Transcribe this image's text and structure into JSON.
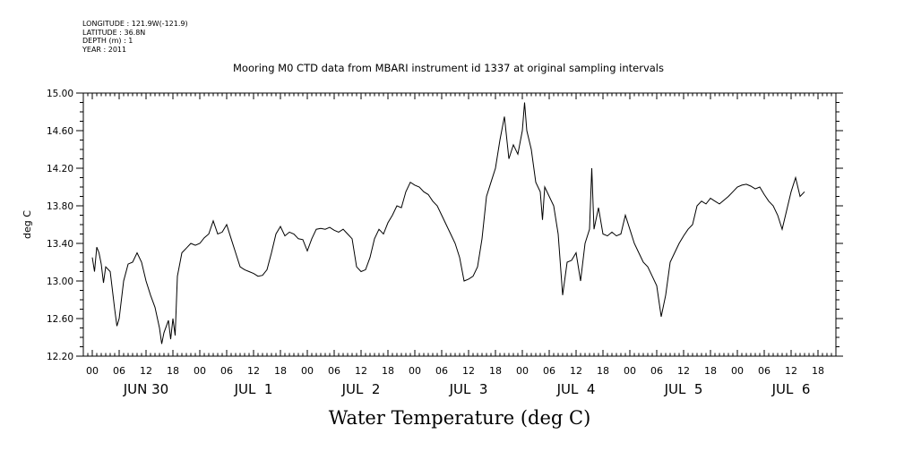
{
  "metadata": {
    "longitude": "LONGITUDE : 121.9W(-121.9)",
    "latitude": "LATITUDE : 36.8N",
    "depth": "DEPTH (m) : 1",
    "year": "YEAR : 2011"
  },
  "chart_data": {
    "type": "line",
    "title": "Mooring M0 CTD data from MBARI instrument id 1337 at original sampling intervals",
    "subtitle": "Water Temperature (deg C)",
    "ylabel": "deg C",
    "xlabel": "",
    "ylim": [
      12.2,
      15.0
    ],
    "yticks": [
      "12.20",
      "12.60",
      "13.00",
      "13.40",
      "13.80",
      "14.20",
      "14.60",
      "15.00"
    ],
    "xlim_hours": [
      -2,
      166
    ],
    "hour_tick_labels": [
      "00",
      "06",
      "12",
      "18",
      "00",
      "06",
      "12",
      "18",
      "00",
      "06",
      "12",
      "18",
      "00",
      "06",
      "12",
      "18",
      "00",
      "06",
      "12",
      "18",
      "00",
      "06",
      "12",
      "18",
      "00",
      "06",
      "12",
      "18"
    ],
    "date_labels": [
      "JUN 30",
      "JUL  1",
      "JUL  2",
      "JUL  3",
      "JUL  4",
      "JUL  5",
      "JUL  6"
    ],
    "grid": false,
    "series": [
      {
        "points": [
          [
            "2011-06-30 00:00",
            13.25
          ],
          [
            "2011-06-30 00:30",
            13.1
          ],
          [
            "2011-06-30 01:00",
            13.36
          ],
          [
            "2011-06-30 01:30",
            13.3
          ],
          [
            "2011-06-30 02:00",
            13.18
          ],
          [
            "2011-06-30 02:30",
            12.98
          ],
          [
            "2011-06-30 03:00",
            13.15
          ],
          [
            "2011-06-30 04:00",
            13.1
          ],
          [
            "2011-06-30 05:00",
            12.7
          ],
          [
            "2011-06-30 05:30",
            12.52
          ],
          [
            "2011-06-30 06:00",
            12.6
          ],
          [
            "2011-06-30 07:00",
            13.0
          ],
          [
            "2011-06-30 08:00",
            13.18
          ],
          [
            "2011-06-30 09:00",
            13.2
          ],
          [
            "2011-06-30 10:00",
            13.3
          ],
          [
            "2011-06-30 11:00",
            13.2
          ],
          [
            "2011-06-30 12:00",
            13.0
          ],
          [
            "2011-06-30 13:00",
            12.85
          ],
          [
            "2011-06-30 14:00",
            12.72
          ],
          [
            "2011-06-30 15:00",
            12.5
          ],
          [
            "2011-06-30 15:30",
            12.33
          ],
          [
            "2011-06-30 16:00",
            12.45
          ],
          [
            "2011-06-30 17:00",
            12.58
          ],
          [
            "2011-06-30 17:30",
            12.38
          ],
          [
            "2011-06-30 18:00",
            12.6
          ],
          [
            "2011-06-30 18:30",
            12.42
          ],
          [
            "2011-06-30 19:00",
            13.05
          ],
          [
            "2011-06-30 20:00",
            13.3
          ],
          [
            "2011-06-30 21:00",
            13.35
          ],
          [
            "2011-06-30 22:00",
            13.4
          ],
          [
            "2011-06-30 23:00",
            13.38
          ],
          [
            "2011-07-01 00:00",
            13.4
          ],
          [
            "2011-07-01 01:00",
            13.46
          ],
          [
            "2011-07-01 02:00",
            13.5
          ],
          [
            "2011-07-01 03:00",
            13.64
          ],
          [
            "2011-07-01 04:00",
            13.5
          ],
          [
            "2011-07-01 05:00",
            13.52
          ],
          [
            "2011-07-01 06:00",
            13.6
          ],
          [
            "2011-07-01 07:00",
            13.45
          ],
          [
            "2011-07-01 08:00",
            13.3
          ],
          [
            "2011-07-01 09:00",
            13.15
          ],
          [
            "2011-07-01 10:00",
            13.12
          ],
          [
            "2011-07-01 11:00",
            13.1
          ],
          [
            "2011-07-01 12:00",
            13.08
          ],
          [
            "2011-07-01 13:00",
            13.05
          ],
          [
            "2011-07-01 14:00",
            13.06
          ],
          [
            "2011-07-01 15:00",
            13.12
          ],
          [
            "2011-07-01 16:00",
            13.3
          ],
          [
            "2011-07-01 17:00",
            13.5
          ],
          [
            "2011-07-01 18:00",
            13.58
          ],
          [
            "2011-07-01 19:00",
            13.48
          ],
          [
            "2011-07-01 20:00",
            13.52
          ],
          [
            "2011-07-01 21:00",
            13.5
          ],
          [
            "2011-07-01 22:00",
            13.45
          ],
          [
            "2011-07-01 23:00",
            13.44
          ],
          [
            "2011-07-02 00:00",
            13.32
          ],
          [
            "2011-07-02 01:00",
            13.45
          ],
          [
            "2011-07-02 02:00",
            13.55
          ],
          [
            "2011-07-02 03:00",
            13.56
          ],
          [
            "2011-07-02 04:00",
            13.55
          ],
          [
            "2011-07-02 05:00",
            13.57
          ],
          [
            "2011-07-02 06:00",
            13.54
          ],
          [
            "2011-07-02 07:00",
            13.52
          ],
          [
            "2011-07-02 08:00",
            13.55
          ],
          [
            "2011-07-02 09:00",
            13.5
          ],
          [
            "2011-07-02 10:00",
            13.45
          ],
          [
            "2011-07-02 11:00",
            13.15
          ],
          [
            "2011-07-02 12:00",
            13.1
          ],
          [
            "2011-07-02 13:00",
            13.12
          ],
          [
            "2011-07-02 14:00",
            13.25
          ],
          [
            "2011-07-02 15:00",
            13.45
          ],
          [
            "2011-07-02 16:00",
            13.55
          ],
          [
            "2011-07-02 17:00",
            13.5
          ],
          [
            "2011-07-02 18:00",
            13.62
          ],
          [
            "2011-07-02 19:00",
            13.7
          ],
          [
            "2011-07-02 20:00",
            13.8
          ],
          [
            "2011-07-02 21:00",
            13.78
          ],
          [
            "2011-07-02 22:00",
            13.95
          ],
          [
            "2011-07-02 23:00",
            14.05
          ],
          [
            "2011-07-03 00:00",
            14.02
          ],
          [
            "2011-07-03 01:00",
            14.0
          ],
          [
            "2011-07-03 02:00",
            13.95
          ],
          [
            "2011-07-03 03:00",
            13.92
          ],
          [
            "2011-07-03 04:00",
            13.85
          ],
          [
            "2011-07-03 05:00",
            13.8
          ],
          [
            "2011-07-03 06:00",
            13.7
          ],
          [
            "2011-07-03 07:00",
            13.6
          ],
          [
            "2011-07-03 08:00",
            13.5
          ],
          [
            "2011-07-03 09:00",
            13.4
          ],
          [
            "2011-07-03 10:00",
            13.25
          ],
          [
            "2011-07-03 11:00",
            13.0
          ],
          [
            "2011-07-03 12:00",
            13.02
          ],
          [
            "2011-07-03 13:00",
            13.05
          ],
          [
            "2011-07-03 14:00",
            13.15
          ],
          [
            "2011-07-03 15:00",
            13.45
          ],
          [
            "2011-07-03 16:00",
            13.9
          ],
          [
            "2011-07-03 17:00",
            14.05
          ],
          [
            "2011-07-03 18:00",
            14.2
          ],
          [
            "2011-07-03 19:00",
            14.5
          ],
          [
            "2011-07-03 20:00",
            14.75
          ],
          [
            "2011-07-03 21:00",
            14.3
          ],
          [
            "2011-07-03 22:00",
            14.45
          ],
          [
            "2011-07-03 23:00",
            14.35
          ],
          [
            "2011-07-04 00:00",
            14.6
          ],
          [
            "2011-07-04 00:30",
            14.9
          ],
          [
            "2011-07-04 01:00",
            14.6
          ],
          [
            "2011-07-04 02:00",
            14.4
          ],
          [
            "2011-07-04 03:00",
            14.05
          ],
          [
            "2011-07-04 04:00",
            13.95
          ],
          [
            "2011-07-04 04:30",
            13.65
          ],
          [
            "2011-07-04 05:00",
            14.0
          ],
          [
            "2011-07-04 06:00",
            13.9
          ],
          [
            "2011-07-04 07:00",
            13.8
          ],
          [
            "2011-07-04 08:00",
            13.5
          ],
          [
            "2011-07-04 09:00",
            12.85
          ],
          [
            "2011-07-04 10:00",
            13.2
          ],
          [
            "2011-07-04 11:00",
            13.22
          ],
          [
            "2011-07-04 12:00",
            13.3
          ],
          [
            "2011-07-04 13:00",
            13.0
          ],
          [
            "2011-07-04 14:00",
            13.4
          ],
          [
            "2011-07-04 15:00",
            13.55
          ],
          [
            "2011-07-04 15:30",
            14.2
          ],
          [
            "2011-07-04 16:00",
            13.55
          ],
          [
            "2011-07-04 17:00",
            13.78
          ],
          [
            "2011-07-04 18:00",
            13.5
          ],
          [
            "2011-07-04 19:00",
            13.48
          ],
          [
            "2011-07-04 20:00",
            13.52
          ],
          [
            "2011-07-04 21:00",
            13.48
          ],
          [
            "2011-07-04 22:00",
            13.5
          ],
          [
            "2011-07-04 23:00",
            13.7
          ],
          [
            "2011-07-05 00:00",
            13.55
          ],
          [
            "2011-07-05 01:00",
            13.4
          ],
          [
            "2011-07-05 02:00",
            13.3
          ],
          [
            "2011-07-05 03:00",
            13.2
          ],
          [
            "2011-07-05 04:00",
            13.15
          ],
          [
            "2011-07-05 05:00",
            13.05
          ],
          [
            "2011-07-05 06:00",
            12.95
          ],
          [
            "2011-07-05 07:00",
            12.62
          ],
          [
            "2011-07-05 08:00",
            12.85
          ],
          [
            "2011-07-05 09:00",
            13.2
          ],
          [
            "2011-07-05 10:00",
            13.3
          ],
          [
            "2011-07-05 11:00",
            13.4
          ],
          [
            "2011-07-05 12:00",
            13.48
          ],
          [
            "2011-07-05 13:00",
            13.55
          ],
          [
            "2011-07-05 14:00",
            13.6
          ],
          [
            "2011-07-05 15:00",
            13.8
          ],
          [
            "2011-07-05 16:00",
            13.85
          ],
          [
            "2011-07-05 17:00",
            13.82
          ],
          [
            "2011-07-05 18:00",
            13.88
          ],
          [
            "2011-07-05 19:00",
            13.85
          ],
          [
            "2011-07-05 20:00",
            13.82
          ],
          [
            "2011-07-05 21:00",
            13.86
          ],
          [
            "2011-07-05 22:00",
            13.9
          ],
          [
            "2011-07-05 23:00",
            13.95
          ],
          [
            "2011-07-06 00:00",
            14.0
          ],
          [
            "2011-07-06 01:00",
            14.02
          ],
          [
            "2011-07-06 02:00",
            14.03
          ],
          [
            "2011-07-06 03:00",
            14.01
          ],
          [
            "2011-07-06 04:00",
            13.98
          ],
          [
            "2011-07-06 05:00",
            14.0
          ],
          [
            "2011-07-06 06:00",
            13.92
          ],
          [
            "2011-07-06 07:00",
            13.85
          ],
          [
            "2011-07-06 08:00",
            13.8
          ],
          [
            "2011-07-06 09:00",
            13.7
          ],
          [
            "2011-07-06 10:00",
            13.55
          ],
          [
            "2011-07-06 11:00",
            13.75
          ],
          [
            "2011-07-06 12:00",
            13.95
          ],
          [
            "2011-07-06 13:00",
            14.1
          ],
          [
            "2011-07-06 14:00",
            13.9
          ],
          [
            "2011-07-06 15:00",
            13.95
          ]
        ]
      }
    ]
  }
}
